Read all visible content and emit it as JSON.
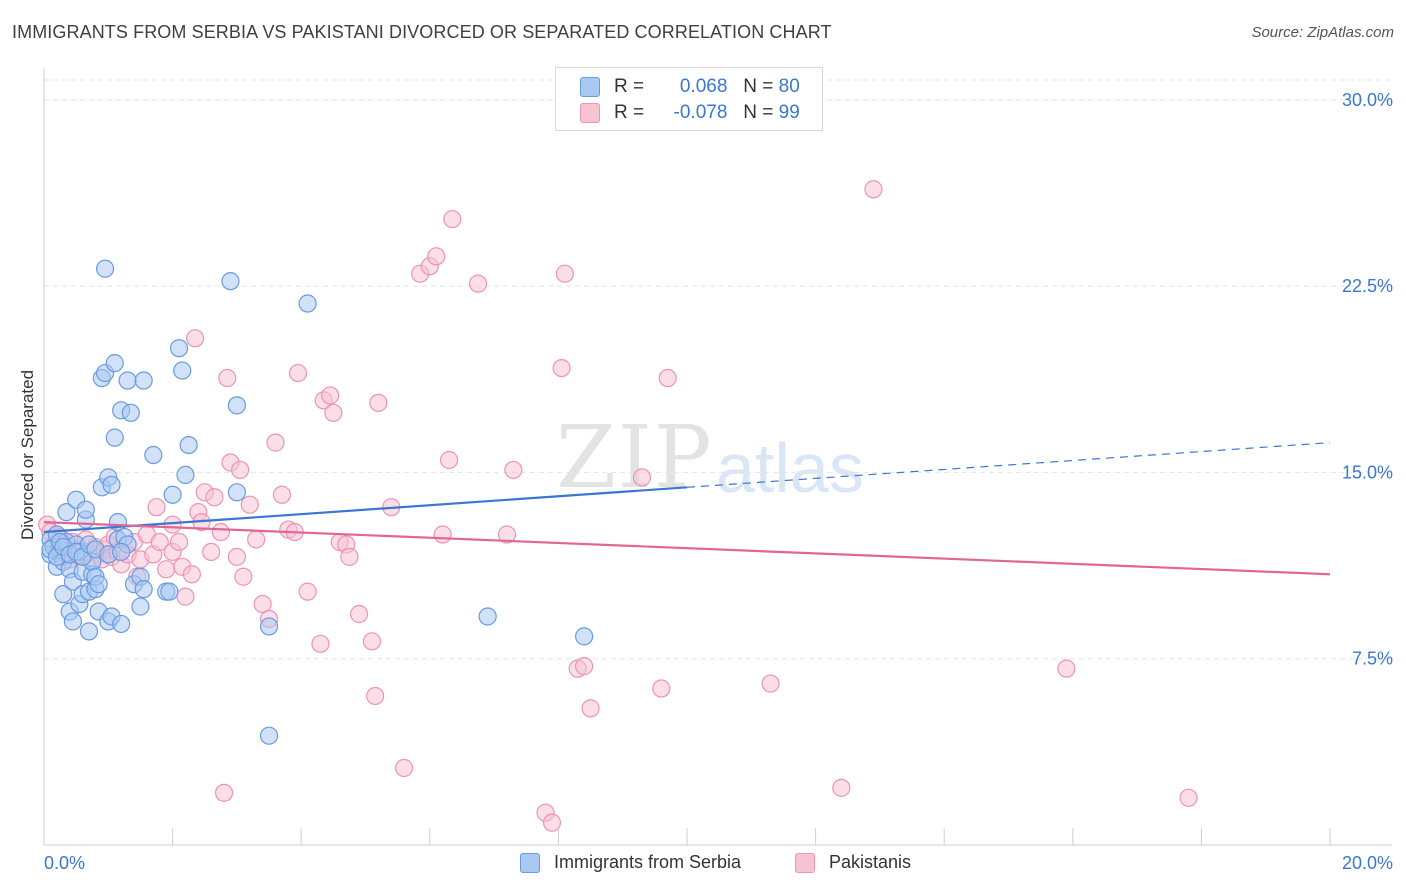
{
  "header": {
    "title": "IMMIGRANTS FROM SERBIA VS PAKISTANI DIVORCED OR SEPARATED CORRELATION CHART",
    "source": "Source: ZipAtlas.com"
  },
  "watermark": {
    "zip": "ZIP",
    "atlas": "atlas"
  },
  "legend": {
    "rows": [
      {
        "r_label": "R =",
        "r_value": "0.068",
        "n_label": "N =",
        "n_value": "80"
      },
      {
        "r_label": "R =",
        "r_value": "-0.078",
        "n_label": "N =",
        "n_value": "99"
      }
    ]
  },
  "chart_data": {
    "type": "scatter",
    "title": "IMMIGRANTS FROM SERBIA VS PAKISTANI DIVORCED OR SEPARATED CORRELATION CHART",
    "xlabel": "",
    "ylabel": "Divorced or Separated",
    "xlim": [
      0,
      20
    ],
    "ylim": [
      0,
      31
    ],
    "x_tick_labels": [
      "0.0%",
      "20.0%"
    ],
    "y_ticks": [
      7.5,
      15.0,
      22.5,
      30.0
    ],
    "y_tick_labels": [
      "7.5%",
      "15.0%",
      "22.5%",
      "30.0%"
    ],
    "grid": true,
    "legend_position": "top-center",
    "colors": {
      "serbia": "#6a9be0",
      "serbia_fill": "#a9c8f2",
      "pakistani": "#ec94b1",
      "pakistani_fill": "#f7c3d3",
      "serbia_line": "#3a77d0",
      "pakistani_line": "#e0669a",
      "axis_text": "#3a77d0"
    },
    "series": [
      {
        "name": "Immigrants from Serbia",
        "trend": {
          "x": [
            0,
            10,
            20
          ],
          "y": [
            12.6,
            14.4,
            16.2
          ],
          "solid_until": 10
        },
        "points": [
          [
            0.1,
            12.3
          ],
          [
            0.1,
            11.7
          ],
          [
            0.15,
            12.0
          ],
          [
            0.2,
            11.2
          ],
          [
            0.2,
            12.5
          ],
          [
            0.25,
            11.9
          ],
          [
            0.3,
            11.4
          ],
          [
            0.3,
            10.1
          ],
          [
            0.35,
            13.4
          ],
          [
            0.35,
            12.2
          ],
          [
            0.4,
            11.1
          ],
          [
            0.4,
            9.4
          ],
          [
            0.45,
            9.0
          ],
          [
            0.45,
            10.6
          ],
          [
            0.5,
            13.9
          ],
          [
            0.5,
            12.1
          ],
          [
            0.55,
            11.8
          ],
          [
            0.55,
            9.7
          ],
          [
            0.6,
            10.1
          ],
          [
            0.6,
            11.0
          ],
          [
            0.65,
            13.1
          ],
          [
            0.65,
            13.5
          ],
          [
            0.7,
            10.2
          ],
          [
            0.7,
            8.6
          ],
          [
            0.75,
            10.9
          ],
          [
            0.75,
            11.4
          ],
          [
            0.8,
            10.3
          ],
          [
            0.8,
            10.8
          ],
          [
            0.85,
            10.5
          ],
          [
            0.85,
            9.4
          ],
          [
            0.9,
            18.8
          ],
          [
            0.9,
            14.4
          ],
          [
            0.95,
            19.0
          ],
          [
            0.95,
            23.2
          ],
          [
            1.0,
            14.8
          ],
          [
            1.0,
            9.0
          ],
          [
            1.05,
            14.5
          ],
          [
            1.05,
            9.2
          ],
          [
            1.1,
            16.4
          ],
          [
            1.1,
            19.4
          ],
          [
            1.15,
            13.0
          ],
          [
            1.15,
            12.3
          ],
          [
            1.2,
            17.5
          ],
          [
            1.2,
            8.9
          ],
          [
            1.25,
            12.4
          ],
          [
            1.3,
            18.7
          ],
          [
            1.3,
            12.1
          ],
          [
            1.35,
            17.4
          ],
          [
            1.4,
            10.5
          ],
          [
            1.5,
            10.8
          ],
          [
            1.5,
            9.6
          ],
          [
            1.55,
            18.7
          ],
          [
            1.55,
            10.3
          ],
          [
            1.7,
            15.7
          ],
          [
            1.9,
            10.2
          ],
          [
            1.95,
            10.2
          ],
          [
            2.0,
            14.1
          ],
          [
            2.1,
            20.0
          ],
          [
            2.15,
            19.1
          ],
          [
            2.2,
            14.9
          ],
          [
            2.25,
            16.1
          ],
          [
            2.9,
            22.7
          ],
          [
            3.0,
            17.7
          ],
          [
            3.0,
            14.2
          ],
          [
            3.5,
            8.8
          ],
          [
            3.5,
            4.4
          ],
          [
            4.1,
            21.8
          ],
          [
            6.9,
            9.2
          ],
          [
            8.4,
            8.4
          ],
          [
            0.1,
            11.9
          ],
          [
            0.2,
            11.6
          ],
          [
            0.25,
            12.2
          ],
          [
            0.3,
            12.0
          ],
          [
            0.4,
            11.7
          ],
          [
            0.5,
            11.8
          ],
          [
            0.6,
            11.6
          ],
          [
            0.7,
            12.1
          ],
          [
            0.8,
            11.9
          ],
          [
            1.0,
            11.7
          ],
          [
            1.2,
            11.8
          ]
        ]
      },
      {
        "name": "Pakistanis",
        "trend": {
          "x": [
            0,
            20
          ],
          "y": [
            13.0,
            10.9
          ]
        },
        "points": [
          [
            0.05,
            12.9
          ],
          [
            0.1,
            12.6
          ],
          [
            0.15,
            12.1
          ],
          [
            0.2,
            11.8
          ],
          [
            0.25,
            12.4
          ],
          [
            0.3,
            11.6
          ],
          [
            0.35,
            12.0
          ],
          [
            0.4,
            11.5
          ],
          [
            0.45,
            12.2
          ],
          [
            0.5,
            11.7
          ],
          [
            0.55,
            11.9
          ],
          [
            0.6,
            11.6
          ],
          [
            0.65,
            12.3
          ],
          [
            0.7,
            11.8
          ],
          [
            0.75,
            11.4
          ],
          [
            0.8,
            12.0
          ],
          [
            0.85,
            11.7
          ],
          [
            0.9,
            11.5
          ],
          [
            0.95,
            11.9
          ],
          [
            1.0,
            12.1
          ],
          [
            1.05,
            11.6
          ],
          [
            1.1,
            12.4
          ],
          [
            1.15,
            11.8
          ],
          [
            1.2,
            11.3
          ],
          [
            1.3,
            11.7
          ],
          [
            1.4,
            12.2
          ],
          [
            1.45,
            10.8
          ],
          [
            1.5,
            11.5
          ],
          [
            1.6,
            12.5
          ],
          [
            1.7,
            11.7
          ],
          [
            1.75,
            13.6
          ],
          [
            1.8,
            12.2
          ],
          [
            1.9,
            11.1
          ],
          [
            2.0,
            11.8
          ],
          [
            2.0,
            12.9
          ],
          [
            2.1,
            12.2
          ],
          [
            2.15,
            11.2
          ],
          [
            2.2,
            10.0
          ],
          [
            2.3,
            10.9
          ],
          [
            2.35,
            20.4
          ],
          [
            2.4,
            13.4
          ],
          [
            2.45,
            13.0
          ],
          [
            2.5,
            14.2
          ],
          [
            2.6,
            11.8
          ],
          [
            2.65,
            14.0
          ],
          [
            2.75,
            12.6
          ],
          [
            2.85,
            18.8
          ],
          [
            2.9,
            15.4
          ],
          [
            3.0,
            11.6
          ],
          [
            3.05,
            15.1
          ],
          [
            3.1,
            10.8
          ],
          [
            3.2,
            13.7
          ],
          [
            3.3,
            12.3
          ],
          [
            3.4,
            9.7
          ],
          [
            3.5,
            9.1
          ],
          [
            3.6,
            16.2
          ],
          [
            3.7,
            14.1
          ],
          [
            3.8,
            12.7
          ],
          [
            3.9,
            12.6
          ],
          [
            3.95,
            19.0
          ],
          [
            4.1,
            10.2
          ],
          [
            4.3,
            8.1
          ],
          [
            4.35,
            17.9
          ],
          [
            4.45,
            18.1
          ],
          [
            4.5,
            17.4
          ],
          [
            4.6,
            12.2
          ],
          [
            4.7,
            12.1
          ],
          [
            4.75,
            11.6
          ],
          [
            4.9,
            9.3
          ],
          [
            5.1,
            8.2
          ],
          [
            5.15,
            6.0
          ],
          [
            5.2,
            17.8
          ],
          [
            5.4,
            13.6
          ],
          [
            5.6,
            3.1
          ],
          [
            5.85,
            23.0
          ],
          [
            6.0,
            23.3
          ],
          [
            6.1,
            23.7
          ],
          [
            6.2,
            12.5
          ],
          [
            6.3,
            15.5
          ],
          [
            6.35,
            25.2
          ],
          [
            6.75,
            22.6
          ],
          [
            7.2,
            12.5
          ],
          [
            7.3,
            15.1
          ],
          [
            7.8,
            1.3
          ],
          [
            7.9,
            0.9
          ],
          [
            8.05,
            19.2
          ],
          [
            8.1,
            23.0
          ],
          [
            8.3,
            7.1
          ],
          [
            8.4,
            7.2
          ],
          [
            8.5,
            5.5
          ],
          [
            9.3,
            14.8
          ],
          [
            9.6,
            6.3
          ],
          [
            9.7,
            18.8
          ],
          [
            11.3,
            6.5
          ],
          [
            12.4,
            2.3
          ],
          [
            12.9,
            26.4
          ],
          [
            15.9,
            7.1
          ],
          [
            17.8,
            1.9
          ],
          [
            2.8,
            2.1
          ]
        ]
      }
    ]
  },
  "bottom_legend": {
    "items": [
      {
        "label": "Immigrants from Serbia"
      },
      {
        "label": "Pakistanis"
      }
    ]
  }
}
